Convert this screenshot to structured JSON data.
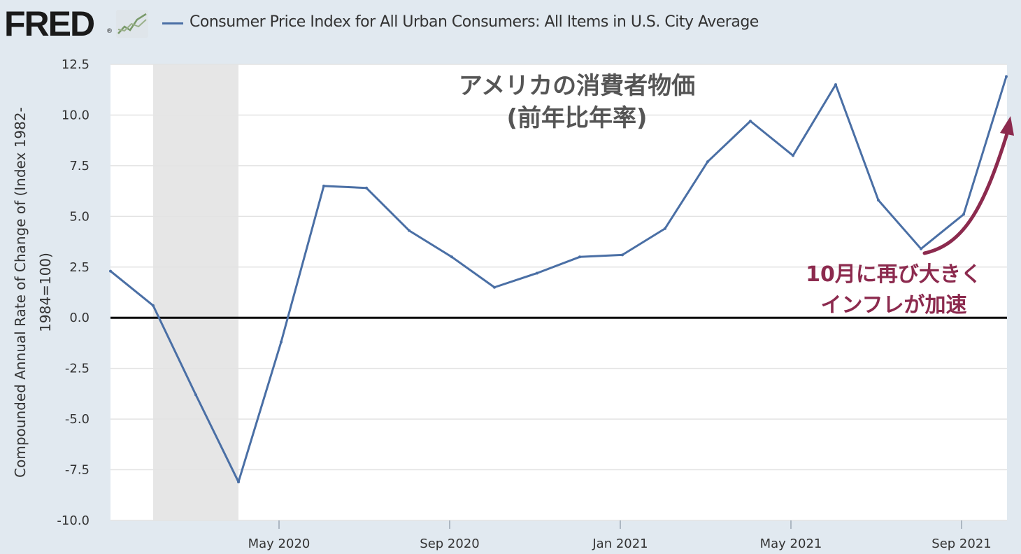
{
  "header": {
    "logo": "FRED",
    "logo_reg": "®",
    "series_title": "Consumer Price Index for All Urban Consumers: All Items in U.S. City Average"
  },
  "colors": {
    "line": "#4a6fa5",
    "recession": "#e6e6e6",
    "annotation": "#8c2a4e",
    "title": "#555555",
    "background": "#e1e9f0"
  },
  "chart_data": {
    "type": "line",
    "x_labels": [
      "May 2020",
      "Sep 2020",
      "Jan 2021",
      "May 2021",
      "Sep 2021"
    ],
    "x": [
      "2020-01",
      "2020-02",
      "2020-03",
      "2020-04",
      "2020-05",
      "2020-06",
      "2020-07",
      "2020-08",
      "2020-09",
      "2020-10",
      "2020-11",
      "2020-12",
      "2021-01",
      "2021-02",
      "2021-03",
      "2021-04",
      "2021-05",
      "2021-06",
      "2021-07",
      "2021-08",
      "2021-09",
      "2021-10"
    ],
    "series": [
      {
        "values": [
          2.3,
          0.6,
          -3.8,
          -8.1,
          -1.2,
          6.5,
          6.4,
          4.3,
          3.0,
          1.5,
          2.2,
          3.0,
          3.1,
          4.4,
          7.7,
          9.7,
          8.0,
          11.5,
          5.8,
          3.4,
          5.1,
          11.9
        ]
      }
    ],
    "ylabel": "Compounded Annual Rate of Change of (Index 1982-1984=100)",
    "ylabel_lines": [
      "Compounded Annual Rate of Change of (Index 1982-",
      "1984=100)"
    ],
    "ylim": [
      -10.0,
      12.5
    ],
    "y_ticks": [
      "12.5",
      "10.0",
      "7.5",
      "5.0",
      "2.5",
      "0.0",
      "-2.5",
      "-5.0",
      "-7.5",
      "-10.0"
    ],
    "recession": {
      "start": "2020-02",
      "end": "2020-04"
    },
    "annotations": {
      "title_line1": "アメリカの消費者物価",
      "title_line2": "(前年比年率)",
      "note_line1": "10月に再び大きく",
      "note_line2": "インフレが加速"
    },
    "grid": true,
    "legend": "top-left"
  }
}
